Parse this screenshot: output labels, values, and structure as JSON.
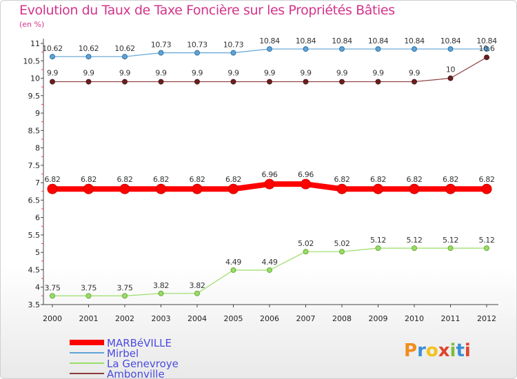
{
  "chart_data": {
    "type": "line",
    "title": "Evolution du Taux de Taxe Foncière sur les Propriétés Bâties",
    "subtitle": "(en %)",
    "x": [
      "2000",
      "2001",
      "2002",
      "2003",
      "2004",
      "2005",
      "2006",
      "2007",
      "2008",
      "2009",
      "2010",
      "2011",
      "2012"
    ],
    "ylim": [
      3.5,
      11
    ],
    "yticks": [
      3.5,
      4,
      4.5,
      5,
      5.5,
      6,
      6.5,
      7,
      7.5,
      8,
      8.5,
      9,
      9.5,
      10,
      10.5,
      11
    ],
    "ytick_labels": [
      "3.5",
      "4",
      "4.5",
      "5",
      "5.5",
      "6",
      "6.5",
      "7",
      "7.5",
      "8",
      "8.5",
      "9",
      "9.5",
      "10",
      "10.5",
      "11"
    ],
    "series": [
      {
        "name": "MARBéVILLE",
        "color": "#ff0000",
        "values": [
          6.82,
          6.82,
          6.82,
          6.82,
          6.82,
          6.82,
          6.96,
          6.96,
          6.82,
          6.82,
          6.82,
          6.82,
          6.82
        ],
        "labels": [
          "6.82",
          "6.82",
          "6.82",
          "6.82",
          "6.82",
          "6.82",
          "6.96",
          "6.96",
          "6.82",
          "6.82",
          "6.82",
          "6.82",
          "6.82"
        ]
      },
      {
        "name": "Mirbel",
        "color": "#5fa3d6",
        "values": [
          10.62,
          10.62,
          10.62,
          10.73,
          10.73,
          10.73,
          10.84,
          10.84,
          10.84,
          10.84,
          10.84,
          10.84,
          10.84
        ],
        "labels": [
          "10.62",
          "10.62",
          "10.62",
          "10.73",
          "10.73",
          "10.73",
          "10.84",
          "10.84",
          "10.84",
          "10.84",
          "10.84",
          "10.84",
          "10.84"
        ]
      },
      {
        "name": "La Genevroye",
        "color": "#99dd66",
        "values": [
          3.75,
          3.75,
          3.75,
          3.82,
          3.82,
          4.49,
          4.49,
          5.02,
          5.02,
          5.12,
          5.12,
          5.12,
          5.12
        ],
        "labels": [
          "3.75",
          "3.75",
          "3.75",
          "3.82",
          "3.82",
          "4.49",
          "4.49",
          "5.02",
          "5.02",
          "5.12",
          "5.12",
          "5.12",
          "5.12"
        ]
      },
      {
        "name": "Ambonville",
        "color": "#8b3a3a",
        "values": [
          9.9,
          9.9,
          9.9,
          9.9,
          9.9,
          9.9,
          9.9,
          9.9,
          9.9,
          9.9,
          9.9,
          10,
          10.6
        ],
        "labels": [
          "9.9",
          "9.9",
          "9.9",
          "9.9",
          "9.9",
          "9.9",
          "9.9",
          "9.9",
          "9.9",
          "9.9",
          "9.9",
          "10",
          "10.6"
        ]
      }
    ],
    "legend_position": "bottom-left",
    "grid": false
  },
  "logo_text": "Proxiti"
}
